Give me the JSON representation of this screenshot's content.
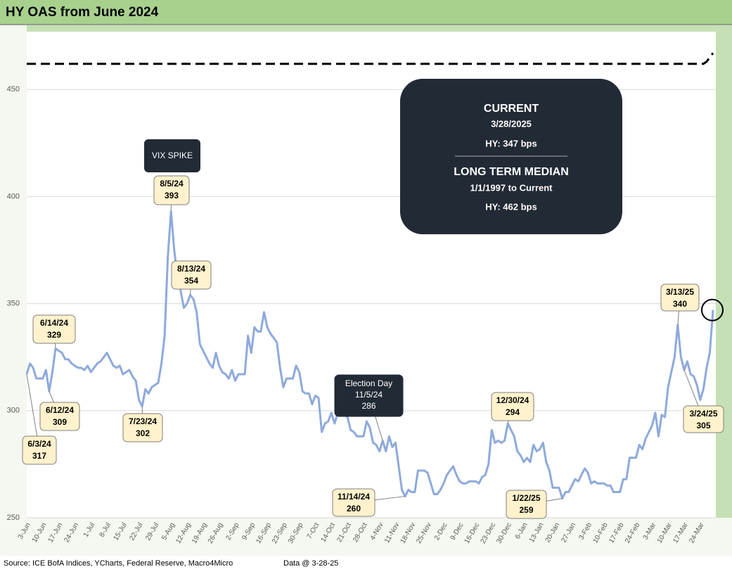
{
  "chart_data": {
    "type": "line",
    "title": "HY OAS from June 2024",
    "categories": [
      "3-Jun",
      null,
      null,
      null,
      null,
      "10-Jun",
      null,
      null,
      null,
      null,
      "17-Jun",
      null,
      null,
      null,
      null,
      "24-Jun",
      null,
      null,
      null,
      null,
      "1-Jul",
      null,
      null,
      null,
      null,
      "8-Jul",
      null,
      null,
      null,
      null,
      "15-Jul",
      null,
      null,
      null,
      null,
      "22-Jul",
      null,
      null,
      null,
      null,
      "29-Jul",
      null,
      null,
      null,
      null,
      "5-Aug",
      null,
      null,
      null,
      null,
      "12-Aug",
      null,
      null,
      null,
      null,
      "19-Aug",
      null,
      null,
      null,
      null,
      "26-Aug",
      null,
      null,
      null,
      null,
      "2-Sep",
      null,
      null,
      null,
      null,
      "9-Sep",
      null,
      null,
      null,
      null,
      "16-Sep",
      null,
      null,
      null,
      null,
      "23-Sep",
      null,
      null,
      null,
      null,
      "30-Sep",
      null,
      null,
      null,
      null,
      "7-Oct",
      null,
      null,
      null,
      null,
      "14-Oct",
      null,
      null,
      null,
      null,
      "21-Oct",
      null,
      null,
      null,
      null,
      "28-Oct",
      null,
      null,
      null,
      null,
      "4-Nov",
      null,
      null,
      null,
      null,
      "11-Nov",
      null,
      null,
      null,
      null,
      "18-Nov",
      null,
      null,
      null,
      null,
      "25-Nov",
      null,
      null,
      null,
      null,
      "2-Dec",
      null,
      null,
      null,
      null,
      "9-Dec",
      null,
      null,
      null,
      null,
      "16-Dec",
      null,
      null,
      null,
      null,
      "23-Dec",
      null,
      null,
      null,
      null,
      "30-Dec",
      null,
      null,
      null,
      null,
      "6-Jan",
      null,
      null,
      null,
      null,
      "13-Jan",
      null,
      null,
      null,
      null,
      "20-Jan",
      null,
      null,
      null,
      null,
      "27-Jan",
      null,
      null,
      null,
      null,
      "3-Feb",
      null,
      null,
      null,
      null,
      "10-Feb",
      null,
      null,
      null,
      null,
      "17-Feb",
      null,
      null,
      null,
      null,
      "24-Feb",
      null,
      null,
      null,
      null,
      "3-Mar",
      null,
      null,
      null,
      null,
      "10-Mar",
      null,
      null,
      null,
      null,
      "17-Mar",
      null,
      null,
      null,
      null,
      "24-Mar",
      null,
      null,
      null,
      null
    ],
    "series": [
      {
        "color": "#8eaadb",
        "values": [
          317,
          322,
          320,
          315,
          315,
          315,
          319,
          309,
          318,
          329,
          328,
          327,
          324,
          324,
          322,
          321,
          320,
          320,
          319,
          321,
          318,
          320,
          322,
          323,
          325,
          327,
          324,
          321,
          320,
          321,
          317,
          318,
          319,
          316,
          314,
          305,
          302,
          310,
          308,
          311,
          312,
          313,
          322,
          335,
          372,
          393,
          375,
          362,
          356,
          348,
          350,
          354,
          352,
          346,
          331,
          328,
          325,
          322,
          320,
          327,
          321,
          318,
          317,
          315,
          319,
          314,
          317,
          317,
          317,
          335,
          327,
          339,
          337,
          337,
          346,
          339,
          336,
          334,
          332,
          320,
          311,
          315,
          315,
          315,
          321,
          318,
          309,
          308,
          308,
          303,
          307,
          306,
          290,
          294,
          295,
          299,
          294,
          299,
          298,
          298,
          297,
          291,
          290,
          288,
          288,
          288,
          295,
          292,
          285,
          284,
          281,
          286,
          281,
          288,
          283,
          285,
          274,
          263,
          260,
          263,
          262,
          262,
          272,
          272,
          272,
          271,
          266,
          261,
          261,
          263,
          266,
          270,
          272,
          274,
          270,
          267,
          266,
          266,
          267,
          267,
          267,
          266,
          269,
          270,
          275,
          291,
          285,
          286,
          285,
          286,
          294,
          291,
          288,
          281,
          279,
          276,
          278,
          276,
          284,
          281,
          282,
          285,
          276,
          272,
          264,
          264,
          264,
          259,
          262,
          262,
          265,
          268,
          267,
          270,
          273,
          271,
          266,
          267,
          266,
          266,
          266,
          265,
          265,
          262,
          262,
          262,
          268,
          268,
          278,
          278,
          278,
          284,
          282,
          287,
          290,
          293,
          299,
          288,
          298,
          297,
          311,
          318,
          325,
          340,
          325,
          319,
          323,
          317,
          316,
          312,
          305,
          310,
          320,
          327,
          347
        ]
      },
      {
        "color": "#000000",
        "dashed": true,
        "values": [
          462,
          462,
          462,
          462,
          462,
          462,
          462,
          462,
          462,
          462,
          462,
          462,
          462,
          462,
          462,
          462,
          462,
          462,
          462,
          462,
          462,
          462,
          462,
          462,
          462,
          462,
          462,
          462,
          462,
          462,
          462,
          462,
          462,
          462,
          462,
          462,
          462,
          462,
          462,
          462,
          462,
          462,
          462,
          462,
          462,
          462,
          462,
          462,
          462,
          462,
          462,
          462,
          462,
          462,
          462,
          462,
          462,
          462,
          462,
          462,
          462,
          462,
          462,
          462,
          462,
          462,
          462,
          462,
          462,
          462,
          462,
          462,
          462,
          462,
          462,
          462,
          462,
          462,
          462,
          462,
          462,
          462,
          462,
          462,
          462,
          462,
          462,
          462,
          462,
          462,
          462,
          462,
          462,
          462,
          462,
          462,
          462,
          462,
          462,
          462,
          462,
          462,
          462,
          462,
          462,
          462,
          462,
          462,
          462,
          462,
          462,
          462,
          462,
          462,
          462,
          462,
          462,
          462,
          462,
          462,
          462,
          462,
          462,
          462,
          462,
          462,
          462,
          462,
          462,
          462,
          462,
          462,
          462,
          462,
          462,
          462,
          462,
          462,
          462,
          462,
          462,
          462,
          462,
          462,
          462,
          462,
          462,
          462,
          462,
          462,
          462,
          462,
          462,
          462,
          462,
          462,
          462,
          462,
          462,
          462,
          462,
          462,
          462,
          462,
          462,
          462,
          462,
          462,
          462,
          462,
          462,
          462,
          462,
          462,
          462,
          462,
          462,
          462,
          462,
          462,
          462,
          462,
          462,
          462,
          462,
          462,
          462,
          462,
          462,
          462,
          462,
          462,
          462,
          462,
          462,
          462,
          462,
          462,
          462,
          462,
          462,
          462,
          462,
          462,
          462,
          462,
          462,
          462,
          462,
          462,
          462,
          462,
          463,
          465,
          467
        ]
      }
    ],
    "ylim": [
      250,
      477
    ],
    "yticks": [
      250,
      300,
      350,
      400,
      450
    ],
    "grid": true,
    "annotations": [
      {
        "text": "6/3/24",
        "value": 317
      },
      {
        "text": "6/12/24",
        "value": 309
      },
      {
        "text": "6/14/24",
        "value": 329
      },
      {
        "text": "7/23/24",
        "value": 302
      },
      {
        "text": "8/5/24",
        "value": 393
      },
      {
        "text": "8/13/24",
        "value": 354
      },
      {
        "title": "Election Day",
        "text": "11/5/24",
        "value": 286
      },
      {
        "text": "11/14/24",
        "value": 260
      },
      {
        "text": "12/30/24",
        "value": 294
      },
      {
        "text": "1/22/25",
        "value": 259
      },
      {
        "text": "3/13/25",
        "value": 340
      },
      {
        "text": "3/24/25",
        "value": 305
      }
    ],
    "vix_label": "VIX SPIKE",
    "info": {
      "current_title": "CURRENT",
      "current_date": "3/28/2025",
      "current_value": "HY: 347 bps",
      "median_title": "LONG TERM MEDIAN",
      "median_period": "1/1/1997 to Current",
      "median_value": "HY: 462 bps"
    },
    "source": "Source: ICE BofA Indices, YCharts, Federal Reserve, Macro4Micro",
    "data_date": "Data @ 3-28-25"
  }
}
